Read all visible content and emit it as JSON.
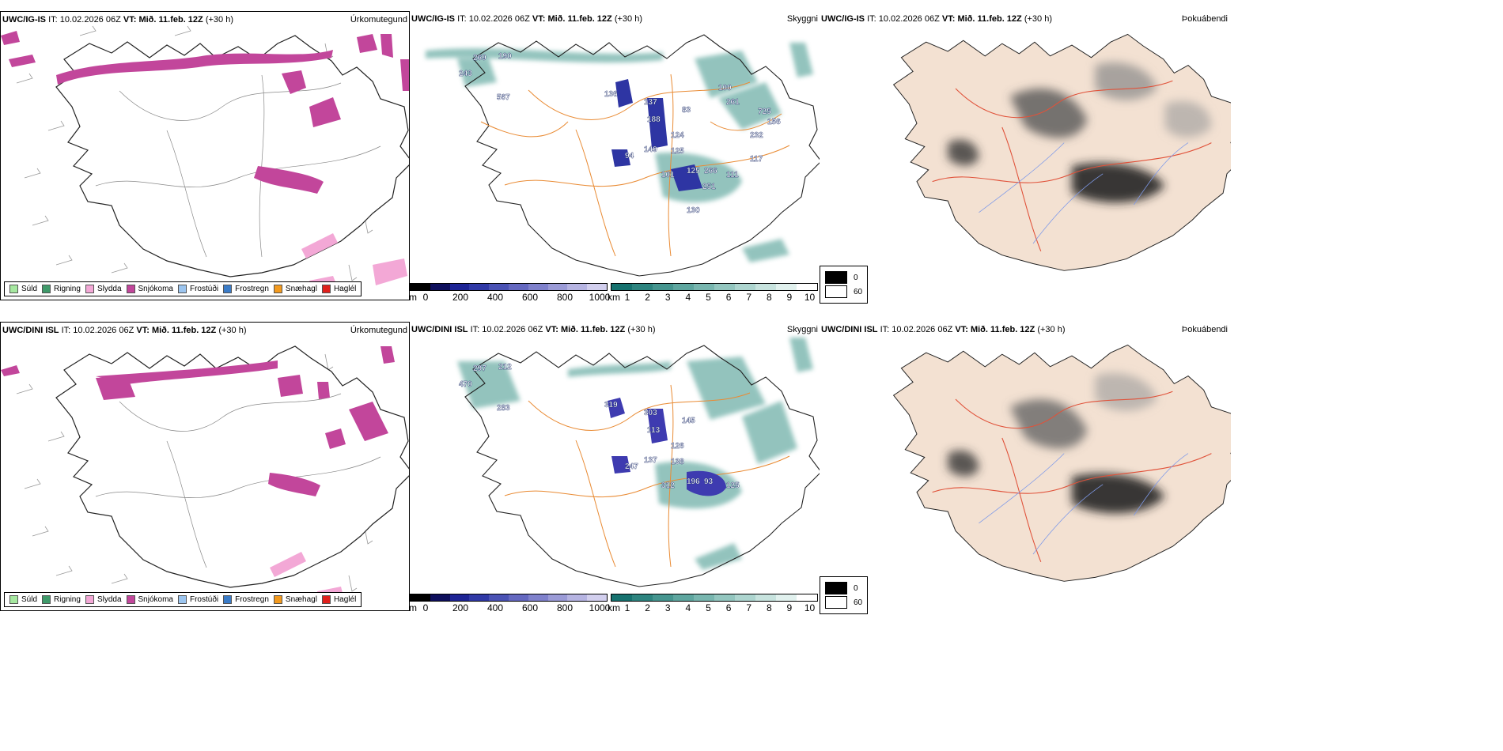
{
  "rows": [
    {
      "model": "UWC/IG-IS",
      "it_label": "IT:",
      "it_value": "10.02.2026 06Z",
      "vt_label": "VT:",
      "vt_value": "Mið. 11.feb. 12Z",
      "lead": "(+30 h)",
      "panels": {
        "precip": "Úrkomutegund",
        "visibility": "Skyggni",
        "fog": "Þokuábendi"
      },
      "vis_labels": [
        "269",
        "190",
        "243",
        "567",
        "136",
        "137",
        "188",
        "83",
        "149",
        "125",
        "94",
        "124",
        "101",
        "125",
        "266",
        "111",
        "251",
        "130",
        "100",
        "725",
        "156",
        "261",
        "232",
        "117"
      ]
    },
    {
      "model": "UWC/DINI ISL",
      "it_label": "IT:",
      "it_value": "10.02.2026 06Z",
      "vt_label": "VT:",
      "vt_value": "Mið. 11.feb. 12Z",
      "lead": "(+30 h)",
      "panels": {
        "precip": "Úrkomutegund",
        "visibility": "Skyggni",
        "fog": "Þokuábendi"
      },
      "vis_labels": [
        "297",
        "212",
        "470",
        "283",
        "319",
        "303",
        "113",
        "145",
        "137",
        "138",
        "247",
        "126",
        "312",
        "196",
        "93",
        "125"
      ]
    }
  ],
  "precip_legend": [
    {
      "label": "Súld",
      "color": "#a6e8a0"
    },
    {
      "label": "Rigning",
      "color": "#3f9a6a"
    },
    {
      "label": "Slydda",
      "color": "#f3a8d6"
    },
    {
      "label": "Snjókoma",
      "color": "#c2469b"
    },
    {
      "label": "Frostúði",
      "color": "#9cc5ef"
    },
    {
      "label": "Frostregn",
      "color": "#3b7cc8"
    },
    {
      "label": "Snæhagl",
      "color": "#f39a1e"
    },
    {
      "label": "Haglél",
      "color": "#e0201c"
    }
  ],
  "ceiling_bar": {
    "unit": "m",
    "ticks": [
      "0",
      "200",
      "400",
      "600",
      "800",
      "1000"
    ],
    "colors": [
      "#000000",
      "#0e0f5c",
      "#1d2495",
      "#3039a6",
      "#4a52b4",
      "#6468c0",
      "#7f81cc",
      "#9b9bd7",
      "#b6b4e2",
      "#d2cfee"
    ]
  },
  "vis_bar": {
    "unit": "km",
    "ticks": [
      "1",
      "2",
      "3",
      "4",
      "5",
      "6",
      "7",
      "8",
      "9",
      "10"
    ],
    "colors": [
      "#16726f",
      "#2d847f",
      "#45958f",
      "#5ea69f",
      "#78b6af",
      "#93c6bf",
      "#add5cf",
      "#c7e3de",
      "#e1f1ee",
      "#ffffff"
    ]
  },
  "fog_legend": [
    {
      "label": "0",
      "color": "#000000"
    },
    {
      "label": "60",
      "color": "#ffffff"
    }
  ]
}
